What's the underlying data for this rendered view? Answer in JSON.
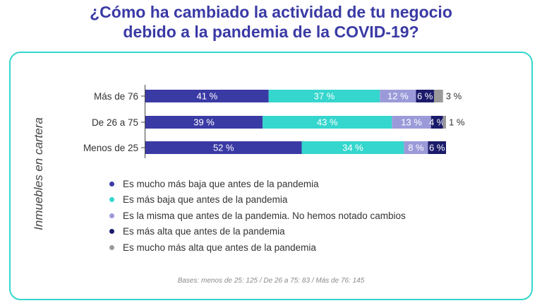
{
  "title": {
    "line1": "¿Cómo ha cambiado la actividad de tu negocio",
    "line2": "debido a la pandemia de la COVID-19?"
  },
  "chart_data": {
    "type": "bar",
    "orientation": "horizontal",
    "stacked": true,
    "ylabel": "Inmuebles en cartera",
    "categories": [
      "Más de 76",
      "De 26 a 75",
      "Menos de 25"
    ],
    "series": [
      {
        "name": "Es mucho más baja que antes de la pandemia",
        "color": "#3a3aa5",
        "values": [
          41,
          39,
          52
        ],
        "labels": [
          "41 %",
          "39 %",
          "52 %"
        ]
      },
      {
        "name": "Es más baja que antes de la pandemia",
        "color": "#35d6cd",
        "values": [
          37,
          43,
          34
        ],
        "labels": [
          "37 %",
          "43 %",
          "34 %"
        ]
      },
      {
        "name": "Es la misma que antes de la pandemia. No hemos notado cambios",
        "color": "#9b9ad9",
        "values": [
          12,
          13,
          8
        ],
        "labels": [
          "12 %",
          "13 %",
          "8 %"
        ]
      },
      {
        "name": "Es más alta que antes de la pandemia",
        "color": "#1b1b6b",
        "values": [
          6,
          4,
          6
        ],
        "labels": [
          "6 %",
          "4 %",
          "6 %"
        ]
      },
      {
        "name": "Es mucho más alta que antes de la pandemia",
        "color": "#9a9a9a",
        "values": [
          3,
          1,
          0
        ],
        "labels": [
          "3 %",
          "1 %",
          ""
        ]
      }
    ],
    "xlim": [
      0,
      100
    ]
  },
  "footer": "Bases: menos de 25: 125 / De 26 a 75: 83 / Más de 76: 145"
}
